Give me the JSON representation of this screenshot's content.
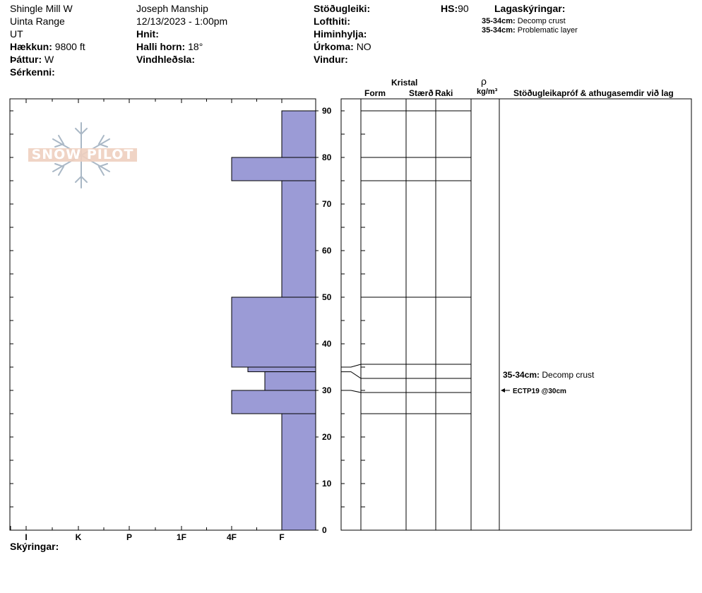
{
  "header": {
    "col1": {
      "location": "Shingle Mill W",
      "range": "Uinta Range",
      "state": "UT",
      "elevation_label": "Hækkun:",
      "elevation_value": "9800 ft",
      "aspect_label": "Þáttur:",
      "aspect_value": "W",
      "features_label": "Sérkenni:"
    },
    "col2": {
      "observer": "Joseph Manship",
      "datetime": "12/13/2023 - 1:00pm",
      "coords_label": "Hnit:",
      "slope_label": "Halli horn:",
      "slope_value": "18°",
      "wind_loading_label": "Vindhleðsla:"
    },
    "col3": {
      "stability_label": "Stöðugleiki:",
      "hs_label": "HS:",
      "hs_value": "90",
      "air_temp_label": "Lofthiti:",
      "sky_label": "Himinhylja:",
      "precip_label": "Úrkoma:",
      "precip_value": "NO",
      "wind_label": "Vindur:"
    },
    "layer_notes": {
      "title": "Lagaskýringar:",
      "items": [
        {
          "range": "35-34cm:",
          "text": "Decomp crust"
        },
        {
          "range": "35-34cm:",
          "text": "Problematic layer"
        }
      ]
    }
  },
  "logo": {
    "text": "SNOW PILOT"
  },
  "column_headers": {
    "kristal": "Kristal",
    "form": "Form",
    "size": "Stærð",
    "moisture": "Raki",
    "rho": "ρ",
    "density_unit": "kg/m³",
    "tests": "Stöðugleikapróf & athugasemdir við lag"
  },
  "annotations": {
    "layer_note_range": "35-34cm:",
    "layer_note_text": "Decomp crust",
    "test_result": "ECTP19 @30cm"
  },
  "footer": {
    "comments_label": "Skýringar:"
  },
  "colors": {
    "bar_fill": "#9b9bd6",
    "line": "#000000"
  },
  "chart_data": {
    "type": "bar",
    "title": "",
    "ylabel": "",
    "ylim": [
      0,
      90
    ],
    "y_ticks": [
      0,
      10,
      20,
      30,
      40,
      50,
      60,
      70,
      80,
      90
    ],
    "hardness_scale": [
      "I",
      "K",
      "P",
      "1F",
      "4F",
      "F"
    ],
    "hardness_values": {
      "F": 1,
      "4F": 2,
      "F-F": 0.67,
      "F-": 1.33
    },
    "layers": [
      {
        "top": 90,
        "bottom": 80,
        "hardness": "F"
      },
      {
        "top": 80,
        "bottom": 75,
        "hardness": "4F"
      },
      {
        "top": 75,
        "bottom": 50,
        "hardness": "F"
      },
      {
        "top": 50,
        "bottom": 35,
        "hardness": "4F"
      },
      {
        "top": 35,
        "bottom": 34,
        "hardness": "4F-"
      },
      {
        "top": 34,
        "bottom": 30,
        "hardness": "F+"
      },
      {
        "top": 30,
        "bottom": 25,
        "hardness": "4F"
      },
      {
        "top": 25,
        "bottom": 0,
        "hardness": "F"
      }
    ],
    "layer_boundaries": [
      90,
      80,
      75,
      50,
      35,
      34,
      30,
      25
    ]
  }
}
